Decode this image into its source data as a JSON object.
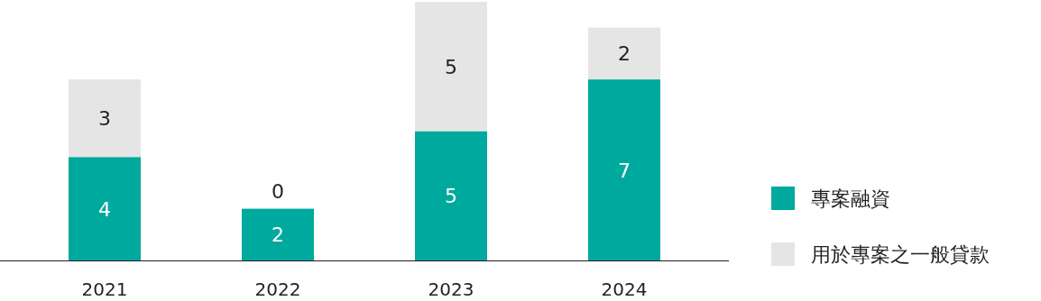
{
  "chart_data": {
    "type": "bar",
    "stacked": true,
    "data_labels": true,
    "legend": "right",
    "categories": [
      "2021",
      "2022",
      "2023",
      "2024"
    ],
    "series": [
      {
        "name": "專案融資",
        "color": "#00a99d",
        "values": [
          4,
          2,
          5,
          7
        ]
      },
      {
        "name": "用於專案之一般貸款",
        "color": "#e5e5e5",
        "values": [
          3,
          0,
          5,
          2
        ]
      }
    ]
  }
}
